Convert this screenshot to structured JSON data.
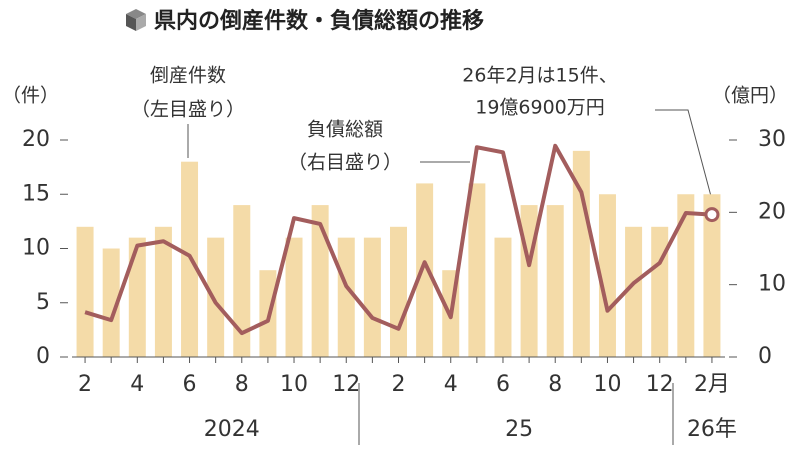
{
  "chart_data": {
    "type": "bar-line",
    "title": "県内の倒産件数・負債総額の推移",
    "y_unit": "（件）",
    "y2_unit": "（億円）",
    "categories": [
      "2",
      null,
      "4",
      null,
      "6",
      null,
      "8",
      null,
      "10",
      null,
      "12",
      null,
      "2",
      null,
      "4",
      null,
      "6",
      null,
      "8",
      null,
      "10",
      null,
      "12",
      null,
      "2月"
    ],
    "year_labels": [
      null,
      null,
      null,
      null,
      null,
      null,
      "2024",
      null,
      null,
      null,
      null,
      null,
      null,
      null,
      null,
      null,
      null,
      "25",
      null,
      null,
      null,
      null,
      null,
      null,
      "26年"
    ],
    "series": [
      {
        "name": "倒産件数",
        "type": "bar",
        "axis": "y",
        "color": "#f4dba8",
        "values": [
          12,
          10,
          11,
          12,
          18,
          11,
          14,
          8,
          11,
          14,
          11,
          11,
          12,
          16,
          8,
          16,
          11,
          14,
          14,
          19,
          15,
          12,
          12,
          15,
          15
        ]
      },
      {
        "name": "負債総額",
        "type": "line",
        "axis": "y2",
        "color": "#a35d5d",
        "values": [
          6.2,
          5.1,
          15.4,
          16,
          14,
          7.5,
          3.3,
          5,
          19.2,
          18.4,
          9.8,
          5.4,
          3.9,
          13.1,
          5.5,
          29,
          28.3,
          12.7,
          29.2,
          22.8,
          6.4,
          10.2,
          13,
          19.9,
          19.69
        ]
      }
    ],
    "annotations": {
      "bar_label": [
        "倒産件数",
        "（左目盛り）"
      ],
      "line_label": [
        "負債総額",
        "（右目盛り）"
      ],
      "callout": [
        "26年2月は15件、",
        "19億6900万円"
      ]
    },
    "ylim": [
      0,
      20
    ],
    "yticks": [
      0,
      5,
      10,
      15,
      20
    ],
    "y2lim": [
      0,
      30
    ],
    "y2ticks": [
      0,
      10,
      20,
      30
    ]
  }
}
